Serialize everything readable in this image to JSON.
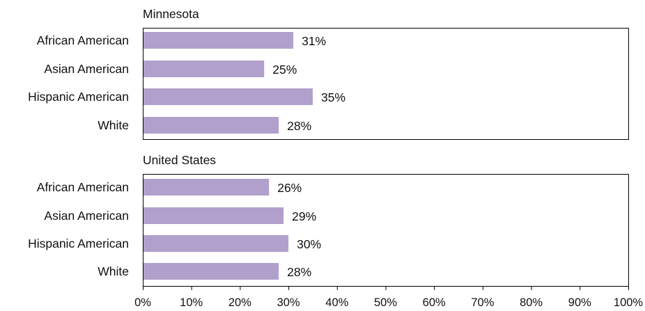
{
  "chart_data": [
    {
      "type": "bar",
      "orientation": "horizontal",
      "title": "Minnesota",
      "categories": [
        "African American",
        "Asian American",
        "Hispanic American",
        "White"
      ],
      "values": [
        31,
        25,
        35,
        28
      ],
      "value_labels": [
        "31%",
        "25%",
        "35%",
        "28%"
      ],
      "bar_color": "#b1a0cb",
      "xlim": [
        0,
        100
      ],
      "grid": false
    },
    {
      "type": "bar",
      "orientation": "horizontal",
      "title": "United States",
      "categories": [
        "African American",
        "Asian American",
        "Hispanic American",
        "White"
      ],
      "values": [
        26,
        29,
        30,
        28
      ],
      "value_labels": [
        "26%",
        "29%",
        "30%",
        "28%"
      ],
      "bar_color": "#b1a0cb",
      "xlim": [
        0,
        100
      ],
      "grid": false
    }
  ],
  "x_axis": {
    "ticks": [
      0,
      10,
      20,
      30,
      40,
      50,
      60,
      70,
      80,
      90,
      100
    ],
    "tick_labels": [
      "0%",
      "10%",
      "20%",
      "30%",
      "40%",
      "50%",
      "60%",
      "70%",
      "80%",
      "90%",
      "100%"
    ]
  }
}
